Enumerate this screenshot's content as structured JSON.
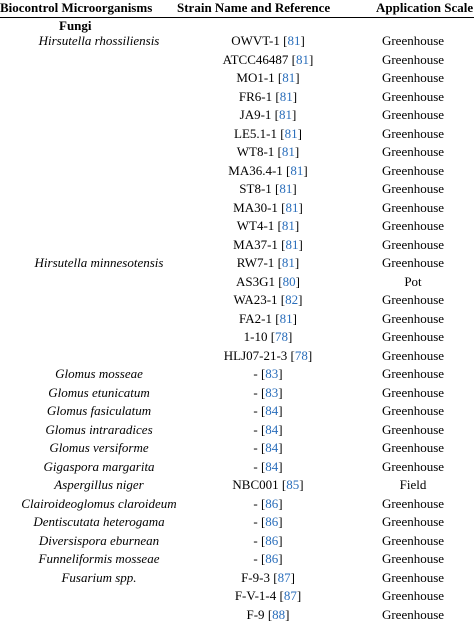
{
  "headers": {
    "organisms": "Biocontrol Microorganisms",
    "strain": "Strain Name and Reference",
    "scale": "Application Scale"
  },
  "section": "Fungi",
  "rows": [
    {
      "organism": "Hirsutella rhossiliensis",
      "strain": "OWVT-1",
      "ref": "81",
      "scale": "Greenhouse"
    },
    {
      "organism": "",
      "strain": "ATCC46487",
      "ref": "81",
      "scale": "Greenhouse"
    },
    {
      "organism": "",
      "strain": "MO1-1",
      "ref": "81",
      "scale": "Greenhouse"
    },
    {
      "organism": "",
      "strain": "FR6-1",
      "ref": "81",
      "scale": "Greenhouse"
    },
    {
      "organism": "",
      "strain": "JA9-1",
      "ref": "81",
      "scale": "Greenhouse"
    },
    {
      "organism": "",
      "strain": "LE5.1-1",
      "ref": "81",
      "scale": "Greenhouse"
    },
    {
      "organism": "",
      "strain": "WT8-1",
      "ref": "81",
      "scale": "Greenhouse"
    },
    {
      "organism": "",
      "strain": "MA36.4-1",
      "ref": "81",
      "scale": "Greenhouse"
    },
    {
      "organism": "",
      "strain": "ST8-1",
      "ref": "81",
      "scale": "Greenhouse"
    },
    {
      "organism": "",
      "strain": "MA30-1",
      "ref": "81",
      "scale": "Greenhouse"
    },
    {
      "organism": "",
      "strain": "WT4-1",
      "ref": "81",
      "scale": "Greenhouse"
    },
    {
      "organism": "",
      "strain": "MA37-1",
      "ref": "81",
      "scale": "Greenhouse"
    },
    {
      "organism": "Hirsutella minnesotensis",
      "strain": "RW7-1",
      "ref": "81",
      "scale": "Greenhouse"
    },
    {
      "organism": "",
      "strain": "AS3G1",
      "ref": "80",
      "scale": "Pot"
    },
    {
      "organism": "",
      "strain": "WA23-1",
      "ref": "82",
      "scale": "Greenhouse"
    },
    {
      "organism": "",
      "strain": "FA2-1",
      "ref": "81",
      "scale": "Greenhouse"
    },
    {
      "organism": "",
      "strain": "1-10",
      "ref": "78",
      "scale": "Greenhouse"
    },
    {
      "organism": "",
      "strain": "HLJ07-21-3",
      "ref": "78",
      "scale": "Greenhouse"
    },
    {
      "organism": "Glomus mosseae",
      "strain": "-",
      "ref": "83",
      "scale": "Greenhouse"
    },
    {
      "organism": "Glomus etunicatum",
      "strain": "-",
      "ref": "83",
      "scale": "Greenhouse"
    },
    {
      "organism": "Glomus fasiculatum",
      "strain": "-",
      "ref": "84",
      "scale": "Greenhouse"
    },
    {
      "organism": "Glomus intraradices",
      "strain": "-",
      "ref": "84",
      "scale": "Greenhouse"
    },
    {
      "organism": "Glomus versiforme",
      "strain": "-",
      "ref": "84",
      "scale": "Greenhouse"
    },
    {
      "organism": "Gigaspora margarita",
      "strain": "-",
      "ref": "84",
      "scale": "Greenhouse"
    },
    {
      "organism": "Aspergillus niger",
      "strain": "NBC001",
      "ref": "85",
      "scale": "Field"
    },
    {
      "organism": "Clairoideoglomus claroideum",
      "strain": "-",
      "ref": "86",
      "scale": "Greenhouse"
    },
    {
      "organism": "Dentiscutata heterogama",
      "strain": "-",
      "ref": "86",
      "scale": "Greenhouse"
    },
    {
      "organism": "Diversispora eburnean",
      "strain": "-",
      "ref": "86",
      "scale": "Greenhouse"
    },
    {
      "organism": "Funneliformis mosseae",
      "strain": "-",
      "ref": "86",
      "scale": "Greenhouse"
    },
    {
      "organism": "Fusarium spp.",
      "strain": "F-9-3",
      "ref": "87",
      "scale": "Greenhouse"
    },
    {
      "organism": "",
      "strain": "F-V-1-4",
      "ref": "87",
      "scale": "Greenhouse"
    },
    {
      "organism": "",
      "strain": "F-9",
      "ref": "88",
      "scale": "Greenhouse"
    }
  ]
}
